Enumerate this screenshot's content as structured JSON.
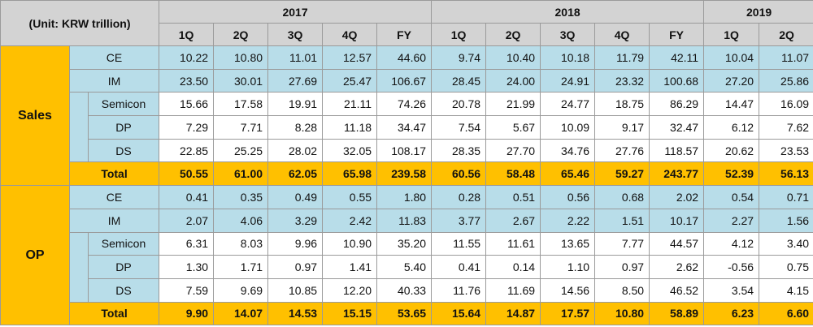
{
  "header": {
    "unit": "(Unit: KRW trillion)",
    "years": [
      {
        "name": "2017",
        "columns": [
          "1Q",
          "2Q",
          "3Q",
          "4Q",
          "FY"
        ]
      },
      {
        "name": "2018",
        "columns": [
          "1Q",
          "2Q",
          "3Q",
          "4Q",
          "FY"
        ]
      },
      {
        "name": "2019",
        "columns": [
          "1Q",
          "2Q"
        ]
      }
    ]
  },
  "sections": [
    {
      "label": "Sales",
      "rows": [
        {
          "label": "CE",
          "values": [
            "10.22",
            "10.80",
            "11.01",
            "12.57",
            "44.60",
            "9.74",
            "10.40",
            "10.18",
            "11.79",
            "42.11",
            "10.04",
            "11.07"
          ]
        },
        {
          "label": "IM",
          "values": [
            "23.50",
            "30.01",
            "27.69",
            "25.47",
            "106.67",
            "28.45",
            "24.00",
            "24.91",
            "23.32",
            "100.68",
            "27.20",
            "25.86"
          ]
        }
      ],
      "segments": [
        {
          "label": "Semicon",
          "values": [
            "15.66",
            "17.58",
            "19.91",
            "21.11",
            "74.26",
            "20.78",
            "21.99",
            "24.77",
            "18.75",
            "86.29",
            "14.47",
            "16.09"
          ]
        },
        {
          "label": "DP",
          "values": [
            "7.29",
            "7.71",
            "8.28",
            "11.18",
            "34.47",
            "7.54",
            "5.67",
            "10.09",
            "9.17",
            "32.47",
            "6.12",
            "7.62"
          ]
        },
        {
          "label": "DS",
          "values": [
            "22.85",
            "25.25",
            "28.02",
            "32.05",
            "108.17",
            "28.35",
            "27.70",
            "34.76",
            "27.76",
            "118.57",
            "20.62",
            "23.53"
          ]
        }
      ],
      "total": {
        "label": "Total",
        "values": [
          "50.55",
          "61.00",
          "62.05",
          "65.98",
          "239.58",
          "60.56",
          "58.48",
          "65.46",
          "59.27",
          "243.77",
          "52.39",
          "56.13"
        ]
      }
    },
    {
      "label": "OP",
      "rows": [
        {
          "label": "CE",
          "values": [
            "0.41",
            "0.35",
            "0.49",
            "0.55",
            "1.80",
            "0.28",
            "0.51",
            "0.56",
            "0.68",
            "2.02",
            "0.54",
            "0.71"
          ]
        },
        {
          "label": "IM",
          "values": [
            "2.07",
            "4.06",
            "3.29",
            "2.42",
            "11.83",
            "3.77",
            "2.67",
            "2.22",
            "1.51",
            "10.17",
            "2.27",
            "1.56"
          ]
        }
      ],
      "segments": [
        {
          "label": "Semicon",
          "values": [
            "6.31",
            "8.03",
            "9.96",
            "10.90",
            "35.20",
            "11.55",
            "11.61",
            "13.65",
            "7.77",
            "44.57",
            "4.12",
            "3.40"
          ]
        },
        {
          "label": "DP",
          "values": [
            "1.30",
            "1.71",
            "0.97",
            "1.41",
            "5.40",
            "0.41",
            "0.14",
            "1.10",
            "0.97",
            "2.62",
            "-0.56",
            "0.75"
          ]
        },
        {
          "label": "DS",
          "values": [
            "7.59",
            "9.69",
            "10.85",
            "12.20",
            "40.33",
            "11.76",
            "11.69",
            "14.56",
            "8.50",
            "46.52",
            "3.54",
            "4.15"
          ]
        }
      ],
      "total": {
        "label": "Total",
        "values": [
          "9.90",
          "14.07",
          "14.53",
          "15.15",
          "53.65",
          "15.64",
          "14.87",
          "17.57",
          "10.80",
          "58.89",
          "6.23",
          "6.60"
        ]
      }
    }
  ]
}
